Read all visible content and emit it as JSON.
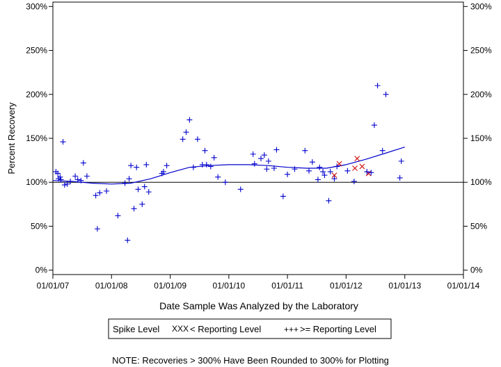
{
  "chart_data": {
    "type": "scatter",
    "xlabel": "Date Sample Was Analyzed by the Laboratory",
    "ylabel": "Percent Recovery",
    "x_axis": {
      "type": "date",
      "range": [
        "2007-01-01",
        "2014-01-01"
      ],
      "ticks": [
        "2007-01-01",
        "2008-01-01",
        "2009-01-01",
        "2010-01-01",
        "2011-01-01",
        "2012-01-01",
        "2013-01-01",
        "2014-01-01"
      ],
      "tick_labels": [
        "01/01/07",
        "01/01/08",
        "01/01/09",
        "01/01/10",
        "01/01/11",
        "01/01/12",
        "01/01/13",
        "01/01/14"
      ]
    },
    "y_axis": {
      "range": [
        -5,
        305
      ],
      "ticks": [
        0,
        50,
        100,
        150,
        200,
        250,
        300
      ],
      "tick_labels": [
        "0%",
        "50%",
        "100%",
        "150%",
        "200%",
        "250%",
        "300%"
      ],
      "right_axis_mirrored": true
    },
    "reference_line": 100,
    "grid": false,
    "legend": {
      "title": "Spike Level",
      "position": "bottom",
      "entries": [
        {
          "symbol": "XXX",
          "label": "< Reporting Level",
          "color": "#cc0000"
        },
        {
          "symbol": "+++",
          "label": ">= Reporting Level",
          "color": "#0000cc"
        }
      ]
    },
    "series": [
      {
        "name": "< Reporting Level",
        "marker": "x",
        "color": "#cc0000",
        "points": [
          [
            "2011-10-20",
            108
          ],
          [
            "2011-11-20",
            121
          ],
          [
            "2012-02-25",
            116
          ],
          [
            "2012-03-10",
            127
          ],
          [
            "2012-04-10",
            118
          ],
          [
            "2012-05-20",
            110
          ]
        ]
      },
      {
        "name": ">= Reporting Level",
        "marker": "+",
        "color": "#0000cc",
        "points": [
          [
            "2007-01-20",
            112
          ],
          [
            "2007-02-01",
            110
          ],
          [
            "2007-02-05",
            104
          ],
          [
            "2007-02-15",
            106
          ],
          [
            "2007-02-20",
            103
          ],
          [
            "2007-03-05",
            146
          ],
          [
            "2007-03-15",
            97
          ],
          [
            "2007-04-01",
            98
          ],
          [
            "2007-04-20",
            101
          ],
          [
            "2007-05-20",
            107
          ],
          [
            "2007-06-05",
            103
          ],
          [
            "2007-06-25",
            102
          ],
          [
            "2007-07-10",
            122
          ],
          [
            "2007-08-01",
            107
          ],
          [
            "2007-09-25",
            85
          ],
          [
            "2007-10-05",
            47
          ],
          [
            "2007-10-20",
            88
          ],
          [
            "2007-12-01",
            90
          ],
          [
            "2008-02-10",
            62
          ],
          [
            "2008-03-25",
            99
          ],
          [
            "2008-04-10",
            34
          ],
          [
            "2008-04-20",
            104
          ],
          [
            "2008-05-01",
            119
          ],
          [
            "2008-05-20",
            70
          ],
          [
            "2008-06-05",
            117
          ],
          [
            "2008-06-15",
            92
          ],
          [
            "2008-07-10",
            75
          ],
          [
            "2008-07-25",
            95
          ],
          [
            "2008-08-05",
            120
          ],
          [
            "2008-08-20",
            89
          ],
          [
            "2008-11-10",
            110
          ],
          [
            "2008-11-20",
            112
          ],
          [
            "2008-12-10",
            119
          ],
          [
            "2009-03-20",
            149
          ],
          [
            "2009-04-10",
            157
          ],
          [
            "2009-05-01",
            171
          ],
          [
            "2009-05-25",
            117
          ],
          [
            "2009-06-20",
            149
          ],
          [
            "2009-07-20",
            120
          ],
          [
            "2009-08-05",
            136
          ],
          [
            "2009-08-15",
            120
          ],
          [
            "2009-09-10",
            118
          ],
          [
            "2009-10-01",
            128
          ],
          [
            "2009-10-25",
            106
          ],
          [
            "2009-12-10",
            100
          ],
          [
            "2010-03-15",
            92
          ],
          [
            "2010-06-01",
            132
          ],
          [
            "2010-06-10",
            121
          ],
          [
            "2010-07-20",
            127
          ],
          [
            "2010-08-10",
            131
          ],
          [
            "2010-08-25",
            115
          ],
          [
            "2010-09-05",
            124
          ],
          [
            "2010-10-10",
            116
          ],
          [
            "2010-10-25",
            137
          ],
          [
            "2010-12-05",
            84
          ],
          [
            "2011-01-01",
            109
          ],
          [
            "2011-02-15",
            115
          ],
          [
            "2011-04-20",
            136
          ],
          [
            "2011-05-15",
            113
          ],
          [
            "2011-06-05",
            123
          ],
          [
            "2011-07-10",
            103
          ],
          [
            "2011-07-20",
            117
          ],
          [
            "2011-08-10",
            112
          ],
          [
            "2011-08-20",
            108
          ],
          [
            "2011-09-15",
            79
          ],
          [
            "2011-09-25",
            112
          ],
          [
            "2011-10-20",
            104
          ],
          [
            "2011-11-05",
            118
          ],
          [
            "2012-01-10",
            113
          ],
          [
            "2012-02-20",
            101
          ],
          [
            "2012-05-10",
            112
          ],
          [
            "2012-06-05",
            111
          ],
          [
            "2012-06-25",
            165
          ],
          [
            "2012-07-15",
            210
          ],
          [
            "2012-08-15",
            136
          ],
          [
            "2012-09-05",
            200
          ],
          [
            "2012-12-01",
            105
          ],
          [
            "2012-12-10",
            124
          ]
        ]
      }
    ],
    "trend_line": {
      "color": "#0000cc",
      "points": [
        [
          "2007-01-01",
          102
        ],
        [
          "2007-05-01",
          101
        ],
        [
          "2007-09-01",
          99
        ],
        [
          "2008-01-01",
          98
        ],
        [
          "2008-05-01",
          99
        ],
        [
          "2008-09-01",
          104
        ],
        [
          "2009-01-01",
          111
        ],
        [
          "2009-05-01",
          117
        ],
        [
          "2009-09-01",
          119
        ],
        [
          "2010-01-01",
          120
        ],
        [
          "2010-05-01",
          120
        ],
        [
          "2010-09-01",
          119
        ],
        [
          "2011-01-01",
          117
        ],
        [
          "2011-05-01",
          116
        ],
        [
          "2011-09-01",
          116
        ],
        [
          "2012-01-01",
          120
        ],
        [
          "2012-05-01",
          126
        ],
        [
          "2012-09-01",
          133
        ],
        [
          "2013-01-01",
          140
        ]
      ]
    }
  },
  "footer": {
    "note": "NOTE: Recoveries > 300% Have Been Rounded to 300% for Plotting"
  }
}
